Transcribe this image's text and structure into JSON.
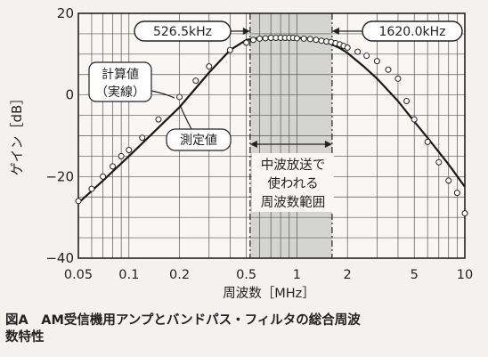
{
  "chart_data": {
    "type": "line",
    "xlabel": "周波数［MHz］",
    "ylabel": "ゲイン［dB］",
    "x_scale": "log",
    "xlim": [
      0.05,
      10
    ],
    "ylim": [
      -40,
      20
    ],
    "grid": true,
    "x_ticks": [
      0.05,
      0.1,
      0.2,
      0.5,
      1,
      2,
      5,
      10
    ],
    "x_tick_labels": [
      "0.05",
      "0.1",
      "0.2",
      "0.5",
      "1",
      "2",
      "5",
      "10"
    ],
    "y_ticks": [
      -40,
      -20,
      0,
      20
    ],
    "y_tick_labels": [
      "−40",
      "−20",
      "0",
      "20"
    ],
    "band": {
      "start": 0.5265,
      "end": 1.62
    },
    "series": [
      {
        "name": "計算値（実線）",
        "style": "line",
        "x": [
          0.05,
          0.07,
          0.1,
          0.15,
          0.2,
          0.3,
          0.4,
          0.5,
          0.6,
          0.8,
          1.0,
          1.2,
          1.5,
          1.8,
          2.0,
          2.5,
          3.0,
          4.0,
          5.0,
          6.0,
          8.0,
          10.0
        ],
        "y": [
          -26.5,
          -21,
          -15,
          -8,
          -3,
          5.5,
          11,
          13.5,
          14,
          14,
          14,
          13.8,
          13,
          11.5,
          10.3,
          7,
          4,
          -1.5,
          -6.5,
          -10.5,
          -17,
          -22.5
        ]
      },
      {
        "name": "測定値",
        "style": "points",
        "x": [
          0.05,
          0.06,
          0.07,
          0.08,
          0.09,
          0.1,
          0.12,
          0.15,
          0.2,
          0.25,
          0.3,
          0.4,
          0.5,
          0.55,
          0.6,
          0.65,
          0.7,
          0.75,
          0.8,
          0.85,
          0.9,
          0.95,
          1.0,
          1.1,
          1.2,
          1.3,
          1.4,
          1.5,
          1.6,
          1.7,
          1.8,
          1.9,
          2.0,
          2.3,
          2.6,
          3.0,
          3.5,
          4.0,
          4.5,
          5.0,
          6.0,
          7.0,
          8.0,
          9.0,
          10.0
        ],
        "y": [
          -26,
          -23,
          -20,
          -17.5,
          -15,
          -13.5,
          -10.5,
          -6,
          -0.5,
          3.5,
          7,
          11,
          12.8,
          13.5,
          13.8,
          13.9,
          14,
          14,
          14,
          14,
          14,
          14,
          13.9,
          13.8,
          13.7,
          13.5,
          13.3,
          13.1,
          13,
          12.7,
          12.4,
          12,
          11.6,
          10.6,
          9.6,
          8.3,
          6.2,
          4,
          -1.5,
          -6,
          -11.5,
          -16.5,
          -21,
          -24,
          -29
        ]
      }
    ],
    "annotations": {
      "low_freq": "526.5kHz",
      "high_freq": "1620.0kHz",
      "calc_label": [
        "計算値",
        "（実線）"
      ],
      "meas_label": "測定値",
      "band_label": [
        "中波放送で",
        "使われる",
        "周波数範囲"
      ]
    }
  },
  "caption": {
    "line1": "図A　AM受信機用アンプとバンドパス・フィルタの総合周波",
    "line2": "数特性"
  }
}
